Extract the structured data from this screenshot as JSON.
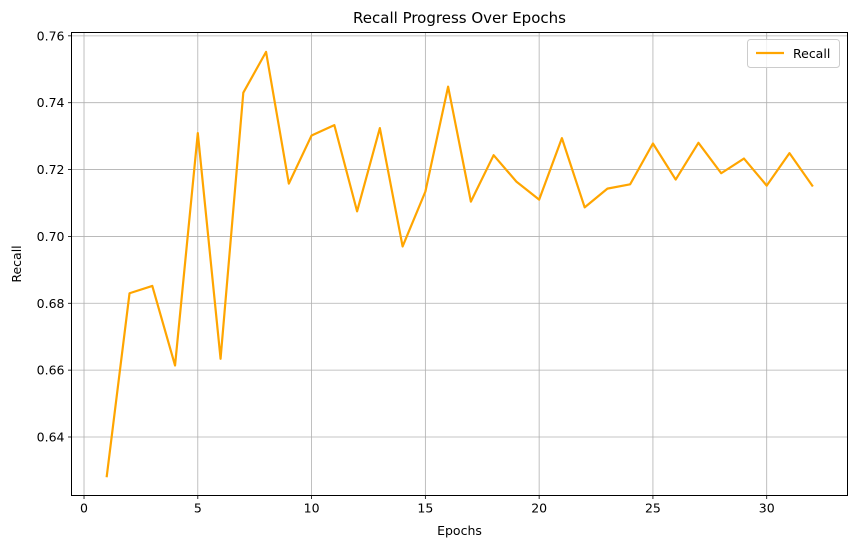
{
  "chart_data": {
    "type": "line",
    "title": "Recall Progress Over Epochs",
    "xlabel": "Epochs",
    "ylabel": "Recall",
    "xlim": [
      -0.55,
      33.55
    ],
    "ylim": [
      0.6225,
      0.761
    ],
    "xticks": [
      0,
      5,
      10,
      15,
      20,
      25,
      30
    ],
    "yticks": [
      0.64,
      0.66,
      0.68,
      0.7,
      0.72,
      0.74,
      0.76
    ],
    "ytick_labels": [
      "0.64",
      "0.66",
      "0.68",
      "0.70",
      "0.72",
      "0.74",
      "0.76"
    ],
    "grid": true,
    "legend_position": "top-right",
    "series": [
      {
        "name": "Recall",
        "color": "#ffa500",
        "x": [
          1,
          2,
          3,
          4,
          5,
          6,
          7,
          8,
          9,
          10,
          11,
          12,
          13,
          14,
          15,
          16,
          17,
          18,
          19,
          20,
          21,
          22,
          23,
          24,
          25,
          26,
          27,
          28,
          29,
          30,
          31,
          32
        ],
        "values": [
          0.6283,
          0.683,
          0.6852,
          0.6614,
          0.7309,
          0.6634,
          0.743,
          0.7552,
          0.7158,
          0.7302,
          0.7333,
          0.7075,
          0.7324,
          0.697,
          0.7134,
          0.7448,
          0.7104,
          0.7243,
          0.7164,
          0.711,
          0.7294,
          0.7087,
          0.7143,
          0.7156,
          0.7278,
          0.717,
          0.728,
          0.7189,
          0.7233,
          0.7152,
          0.7249,
          0.7152
        ]
      }
    ]
  }
}
